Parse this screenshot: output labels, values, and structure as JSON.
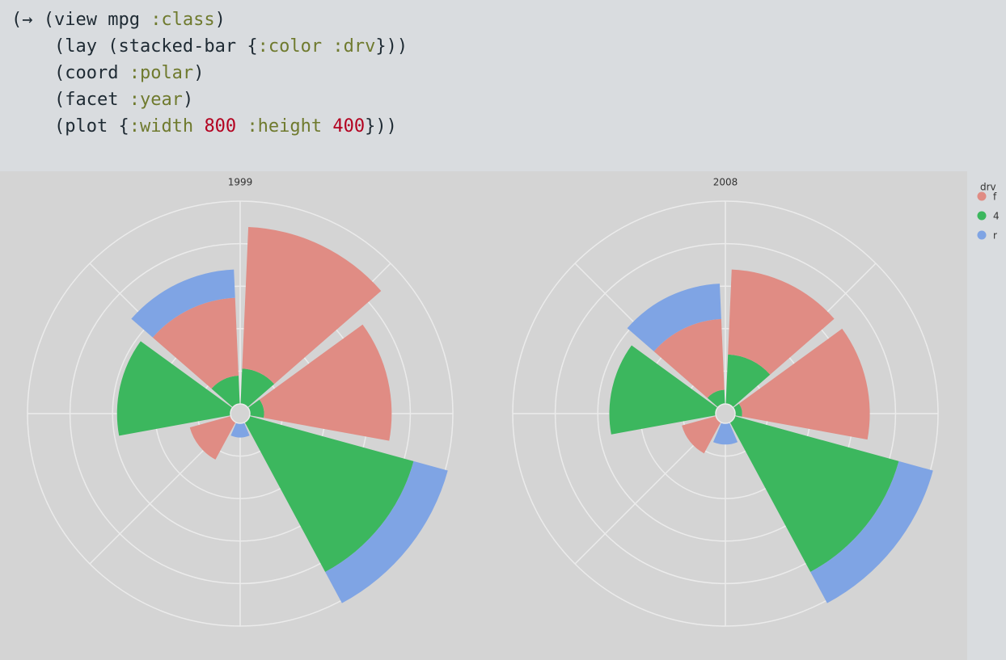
{
  "code": [
    [
      "(→ (view mpg ",
      ":class",
      ")"
    ],
    [
      "    (lay (stacked-bar {",
      ":color",
      " ",
      ":drv",
      "}))"
    ],
    [
      "    (coord ",
      ":polar",
      ")"
    ],
    [
      "    (facet ",
      ":year",
      ")"
    ],
    [
      "    (plot {",
      ":width",
      " ",
      "800",
      " ",
      ":height",
      " ",
      "400",
      "}))"
    ]
  ],
  "chart_data": {
    "type": "bar",
    "coord": "polar",
    "stacked": true,
    "facets": [
      "1999",
      "2008"
    ],
    "legend_title": "drv",
    "legend": "top-right",
    "grid": true,
    "ylim": [
      0,
      30
    ],
    "yticks": [
      6,
      12,
      18,
      24,
      30
    ],
    "series": [
      {
        "name": "f",
        "color": "#e08c84",
        "values": [
          [
            20,
            18,
            0,
            0,
            6,
            0,
            11
          ],
          [
            12,
            18,
            0,
            0,
            5,
            0,
            10
          ]
        ]
      },
      {
        "name": "4",
        "color": "#3cb75e",
        "values": [
          [
            5,
            2,
            24,
            0,
            0,
            16,
            4
          ],
          [
            7,
            1,
            24,
            0,
            0,
            15,
            2
          ]
        ]
      },
      {
        "name": "r",
        "color": "#7fa4e4",
        "values": [
          [
            0,
            0,
            5,
            2,
            0,
            0,
            4
          ],
          [
            0,
            0,
            5,
            3,
            0,
            0,
            5
          ]
        ]
      }
    ]
  }
}
